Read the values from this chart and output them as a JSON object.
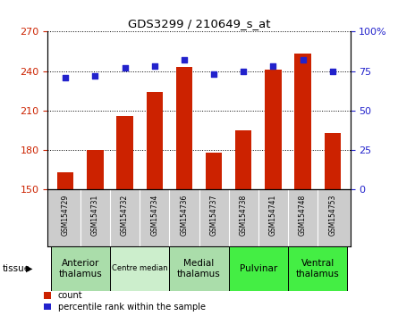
{
  "title": "GDS3299 / 210649_s_at",
  "samples": [
    "GSM154729",
    "GSM154731",
    "GSM154732",
    "GSM154734",
    "GSM154736",
    "GSM154737",
    "GSM154738",
    "GSM154741",
    "GSM154748",
    "GSM154753"
  ],
  "counts": [
    163,
    180,
    206,
    224,
    243,
    178,
    195,
    241,
    253,
    193
  ],
  "percentiles": [
    71,
    72,
    77,
    78,
    82,
    73,
    75,
    78,
    82,
    75
  ],
  "ylim_left": [
    150,
    270
  ],
  "ylim_right": [
    0,
    100
  ],
  "yticks_left": [
    150,
    180,
    210,
    240,
    270
  ],
  "yticks_right": [
    0,
    25,
    50,
    75,
    100
  ],
  "bar_color": "#cc2200",
  "dot_color": "#2222cc",
  "grid_color": "#000000",
  "tissue_groups": [
    {
      "label": "Anterior\nthalamus",
      "start": 0,
      "end": 1,
      "color": "#aaddaa"
    },
    {
      "label": "Centre median",
      "start": 2,
      "end": 3,
      "color": "#cceecc"
    },
    {
      "label": "Medial\nthalamus",
      "start": 4,
      "end": 5,
      "color": "#aaddaa"
    },
    {
      "label": "Pulvinar",
      "start": 6,
      "end": 7,
      "color": "#44ee44"
    },
    {
      "label": "Ventral\nthalamus",
      "start": 8,
      "end": 9,
      "color": "#44ee44"
    }
  ],
  "xlabel_tissue": "tissue",
  "legend_count_label": "count",
  "legend_pct_label": "percentile rank within the sample",
  "bg_color": "#ffffff",
  "sample_bg_color": "#cccccc",
  "tick_label_color_left": "#cc2200",
  "tick_label_color_right": "#2222cc"
}
